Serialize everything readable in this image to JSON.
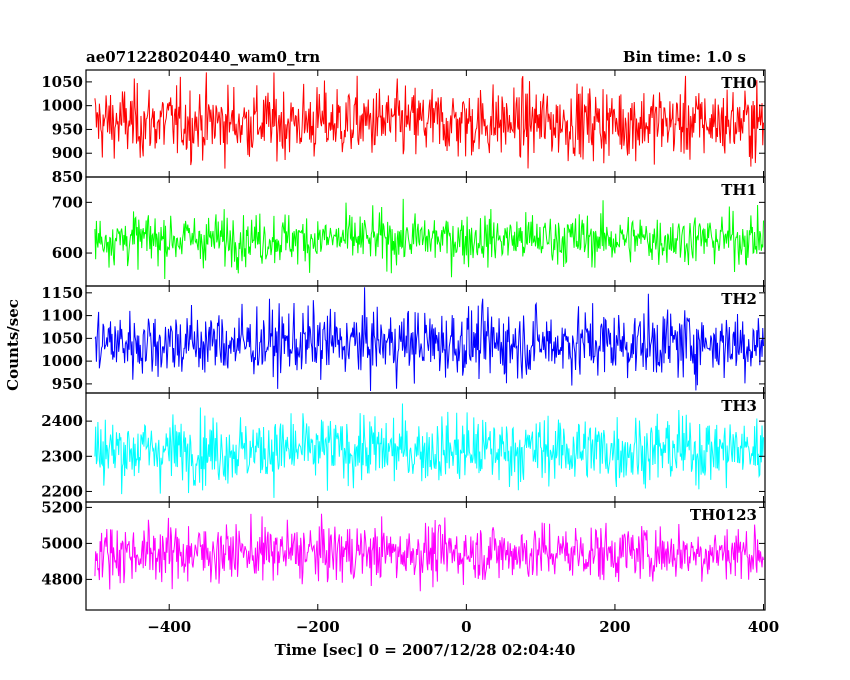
{
  "chart_data": {
    "type": "line",
    "title": "ae071228020440_wam0_trn",
    "subtitle": "Bin time: 1.0 s",
    "xlabel": "Time [sec] 0 = 2007/12/28 02:04:40",
    "ylabel": "Counts/sec",
    "xlim": [
      -512,
      402
    ],
    "x_ticks": [
      -400,
      -200,
      0,
      200,
      400
    ],
    "x_range": [
      -500,
      400
    ],
    "bin_time": 1.0,
    "grid": false,
    "series": [
      {
        "name": "TH0",
        "color": "#ff0000",
        "mean": 965,
        "sigma": 38,
        "ylim": [
          850,
          1075
        ],
        "ticks": [
          850,
          900,
          950,
          1000,
          1050
        ]
      },
      {
        "name": "TH1",
        "color": "#00ff00",
        "mean": 628,
        "sigma": 25,
        "ylim": [
          535,
          750
        ],
        "ticks": [
          600,
          700
        ]
      },
      {
        "name": "TH2",
        "color": "#0000ff",
        "mean": 1040,
        "sigma": 38,
        "ylim": [
          930,
          1165
        ],
        "ticks": [
          950,
          1000,
          1050,
          1100,
          1150
        ]
      },
      {
        "name": "TH3",
        "color": "#00ffff",
        "mean": 2318,
        "sigma": 48,
        "ylim": [
          2170,
          2480
        ],
        "ticks": [
          2200,
          2300,
          2400
        ]
      },
      {
        "name": "TH0123",
        "color": "#ff00ff",
        "mean": 4950,
        "sigma": 80,
        "ylim": [
          4630,
          5230
        ],
        "ticks": [
          4800,
          5000,
          5200
        ]
      }
    ]
  }
}
